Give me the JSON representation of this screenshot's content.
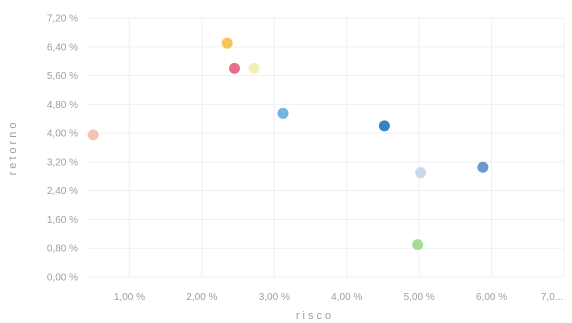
{
  "chart_data": {
    "type": "scatter",
    "title": "",
    "xlabel": "risco",
    "ylabel": "retorno",
    "xlim": [
      0.4,
      7.0
    ],
    "ylim": [
      0.0,
      7.2
    ],
    "x_ticks": [
      {
        "value": 1.0,
        "label": "1,00 %"
      },
      {
        "value": 2.0,
        "label": "2,00 %"
      },
      {
        "value": 3.0,
        "label": "3,00 %"
      },
      {
        "value": 4.0,
        "label": "4,00 %"
      },
      {
        "value": 5.0,
        "label": "5,00 %"
      },
      {
        "value": 6.0,
        "label": "6,00 %"
      },
      {
        "value": 7.0,
        "label": "7,0..."
      }
    ],
    "y_ticks": [
      {
        "value": 0.0,
        "label": "0,00 %"
      },
      {
        "value": 0.8,
        "label": "0,80 %"
      },
      {
        "value": 1.6,
        "label": "1,60 %"
      },
      {
        "value": 2.4,
        "label": "2,40 %"
      },
      {
        "value": 3.2,
        "label": "3,20 %"
      },
      {
        "value": 4.0,
        "label": "4,00 %"
      },
      {
        "value": 4.8,
        "label": "4,80 %"
      },
      {
        "value": 5.6,
        "label": "5,60 %"
      },
      {
        "value": 6.4,
        "label": "6,40 %"
      },
      {
        "value": 7.2,
        "label": "7,20 %"
      }
    ],
    "grid": true,
    "points": [
      {
        "x": 0.5,
        "y": 3.95,
        "color": "#f4c3b8"
      },
      {
        "x": 2.35,
        "y": 6.5,
        "color": "#f7c45a"
      },
      {
        "x": 2.45,
        "y": 5.8,
        "color": "#ea6f8e"
      },
      {
        "x": 2.72,
        "y": 5.8,
        "color": "#f3efb5"
      },
      {
        "x": 3.12,
        "y": 4.55,
        "color": "#6fb7e0"
      },
      {
        "x": 4.52,
        "y": 4.2,
        "color": "#3c81c4"
      },
      {
        "x": 5.02,
        "y": 2.9,
        "color": "#c9d8ea"
      },
      {
        "x": 5.88,
        "y": 3.05,
        "color": "#6a98cf"
      },
      {
        "x": 4.98,
        "y": 0.9,
        "color": "#a6dc98"
      }
    ]
  }
}
